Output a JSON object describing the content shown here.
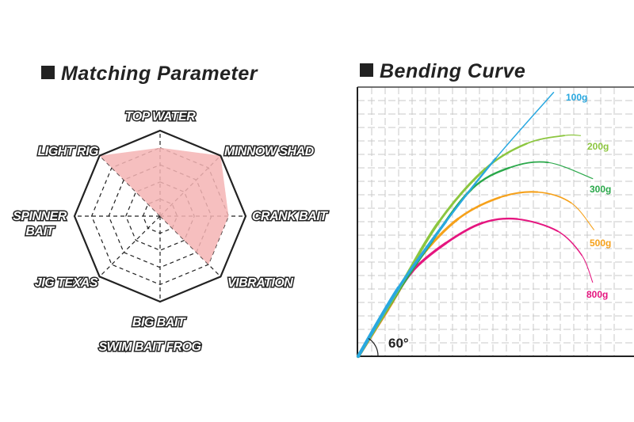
{
  "chart_data": [
    {
      "type": "radar",
      "title": "Matching Parameter",
      "axes": [
        "TOP WATER",
        "MINNOW SHAD",
        "CRANK BAIT",
        "VIBRATION",
        "BIG BAIT / SWIM BAIT FROG",
        "JIG TEXAS",
        "SPINNER BAIT",
        "LIGHT RIG"
      ],
      "labels": {
        "top": "TOP WATER",
        "minnow": "MINNOW SHAD",
        "crank": "CRANK BAIT",
        "vibration": "VIBRATION",
        "big": "BIG BAIT",
        "swim": "SWIM BAIT FROG",
        "jig": "JIG TEXAS",
        "spinner1": "SPINNER",
        "spinner2": "BAIT",
        "light": "LIGHT RIG"
      },
      "values": [
        4,
        5,
        4,
        4,
        0,
        0,
        0,
        5
      ],
      "max": 5,
      "rings": 5,
      "fill_color": "#f4b4b4"
    },
    {
      "type": "line",
      "title": "Bending Curve",
      "angle_label": "60°",
      "grid": true,
      "xlim": [
        0,
        19.6
      ],
      "ylim": [
        0,
        20
      ],
      "series": [
        {
          "name": "100g",
          "color": "#29a8e0",
          "points": [
            [
              0,
              0
            ],
            [
              3,
              5.1
            ],
            [
              6.5,
              10
            ],
            [
              10.2,
              14.7
            ],
            [
              14.5,
              19.6
            ]
          ]
        },
        {
          "name": "200g",
          "color": "#8cc63f",
          "points": [
            [
              0,
              0
            ],
            [
              3,
              5
            ],
            [
              6,
              10
            ],
            [
              9.4,
              13.9
            ],
            [
              12.5,
              15.8
            ],
            [
              15.3,
              16.4
            ],
            [
              16.5,
              16.4
            ]
          ]
        },
        {
          "name": "300g",
          "color": "#2aa84a",
          "points": [
            [
              0,
              0
            ],
            [
              3,
              4.9
            ],
            [
              5.5,
              8.6
            ],
            [
              8.4,
              12.4
            ],
            [
              11.2,
              14
            ],
            [
              14.1,
              14.4
            ],
            [
              17.4,
              13.2
            ]
          ]
        },
        {
          "name": "500g",
          "color": "#f6a11a",
          "points": [
            [
              0,
              0
            ],
            [
              2.5,
              4
            ],
            [
              4.5,
              7.2
            ],
            [
              7.4,
              10.2
            ],
            [
              10.5,
              11.8
            ],
            [
              13.3,
              12.2
            ],
            [
              15.8,
              11.4
            ],
            [
              17.5,
              9.4
            ]
          ]
        },
        {
          "name": "800g",
          "color": "#e5157f",
          "points": [
            [
              0,
              0
            ],
            [
              2.2,
              3.5
            ],
            [
              4,
              6.3
            ],
            [
              6.5,
              8.4
            ],
            [
              9.2,
              9.9
            ],
            [
              11.8,
              10.2
            ],
            [
              14.8,
              9.3
            ],
            [
              16.6,
              7.5
            ],
            [
              17.4,
              5.5
            ]
          ]
        }
      ]
    }
  ]
}
